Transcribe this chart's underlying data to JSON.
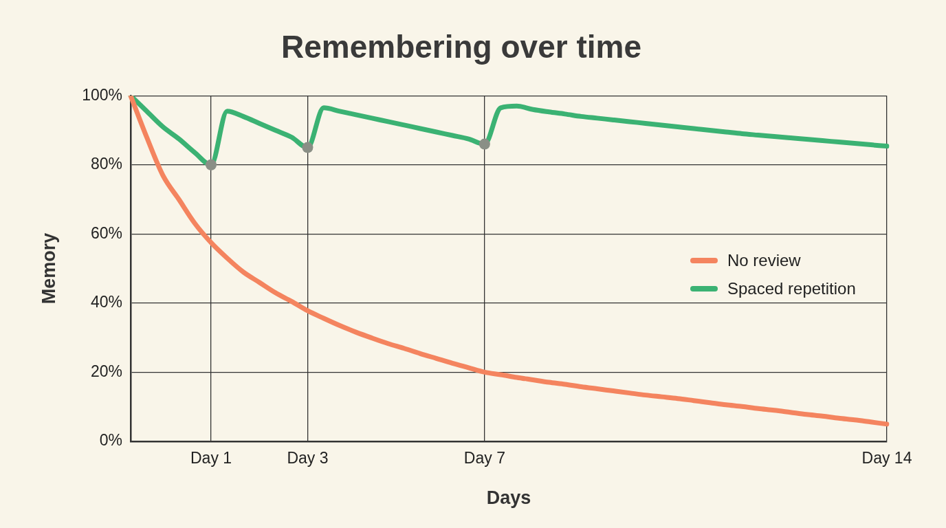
{
  "chart_data": {
    "type": "line",
    "title": "Remembering over time",
    "xlabel": "Days",
    "ylabel": "Memory",
    "categories": [
      null,
      null,
      null,
      null,
      null,
      "Day 1",
      null,
      null,
      null,
      null,
      null,
      "Day 3",
      null,
      null,
      null,
      null,
      null,
      null,
      null,
      null,
      null,
      null,
      "Day 7",
      null,
      null,
      null,
      null,
      null,
      null,
      null,
      null,
      null,
      null,
      null,
      null,
      null,
      null,
      null,
      null,
      null,
      null,
      null,
      null,
      null,
      null,
      null,
      null,
      "Day 14"
    ],
    "ylim": [
      0,
      100
    ],
    "yticks": [
      {
        "value": 0,
        "label": "0%"
      },
      {
        "value": 20,
        "label": "20%"
      },
      {
        "value": 40,
        "label": "40%"
      },
      {
        "value": 60,
        "label": "60%"
      },
      {
        "value": 80,
        "label": "80%"
      },
      {
        "value": 100,
        "label": "100%"
      }
    ],
    "grid": true,
    "legend": "right",
    "marker": "none",
    "line_style": "solid",
    "series": [
      {
        "name": "No review",
        "color": "#f4845f",
        "values": [
          100,
          88,
          77,
          70,
          63,
          57.5,
          53,
          49,
          46,
          43,
          40.5,
          37.8,
          35.6,
          33.5,
          31.6,
          29.9,
          28.3,
          26.9,
          25.4,
          24,
          22.6,
          21.3,
          20,
          19.3,
          18.5,
          17.8,
          17.1,
          16.5,
          15.8,
          15.2,
          14.6,
          14,
          13.4,
          12.9,
          12.4,
          11.8,
          11.2,
          10.6,
          10.1,
          9.5,
          9,
          8.4,
          7.8,
          7.3,
          6.7,
          6.2,
          5.6,
          5
        ]
      },
      {
        "name": "Spaced repetition",
        "color": "#3bb273",
        "values": [
          100,
          95.5,
          91,
          87.5,
          83.5,
          80,
          95.5,
          94,
          92,
          90,
          88,
          85,
          96.5,
          95.5,
          94.5,
          93.5,
          92.5,
          91.5,
          90.5,
          89.5,
          88.5,
          87.5,
          86,
          96.5,
          97,
          96,
          95.3,
          94.7,
          94,
          93.5,
          93,
          92.5,
          92,
          91.5,
          91,
          90.5,
          90,
          89.5,
          89,
          88.6,
          88.2,
          87.8,
          87.4,
          87,
          86.6,
          86.2,
          85.8,
          85.4
        ]
      },
      {
        "type": "scatter",
        "color": "#8a8f86",
        "marker": "circle",
        "values": [
          null,
          null,
          null,
          null,
          null,
          80,
          null,
          null,
          null,
          null,
          null,
          85,
          null,
          null,
          null,
          null,
          null,
          null,
          null,
          null,
          null,
          null,
          86,
          null,
          null,
          null,
          null,
          null,
          null,
          null,
          null,
          null,
          null,
          null,
          null,
          null,
          null,
          null,
          null,
          null,
          null,
          null,
          null,
          null,
          null,
          null,
          null,
          null
        ]
      }
    ]
  }
}
